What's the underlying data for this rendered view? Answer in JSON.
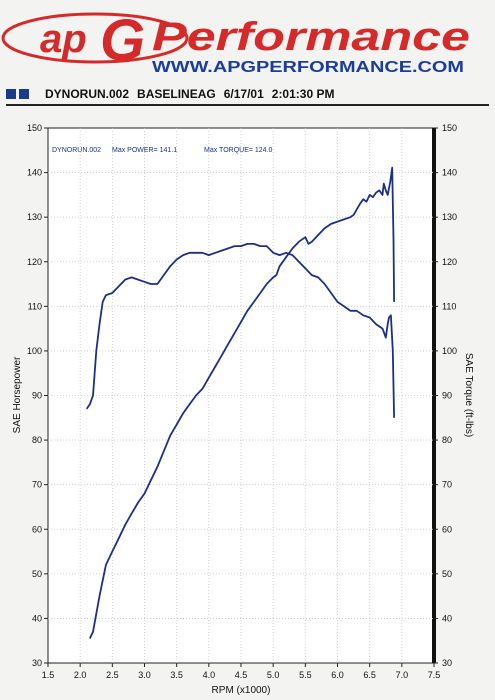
{
  "logo": {
    "mark": "ap",
    "brand": "Performance",
    "url": "WWW.APGPERFORMANCE.COM",
    "colors": {
      "red": "#d42a2a",
      "blue": "#1d3d9a"
    }
  },
  "header": {
    "file": "DYNORUN.002",
    "title": "BASELINEAG",
    "date": "6/17/01",
    "time": "2:01:30 PM"
  },
  "chart_data": {
    "type": "line",
    "title": "",
    "info": {
      "run": "DYNORUN.002",
      "max_power": "Max POWER= 141.1",
      "max_torque": "Max TORQUE= 124.0"
    },
    "xlabel": "RPM (x1000)",
    "ylabel_left": "SAE Horsepower",
    "ylabel_right": "SAE Torque (ft-lbs)",
    "xlim": [
      1.5,
      7.5
    ],
    "ylim": [
      30,
      150
    ],
    "x_ticks": [
      "1.5",
      "2.0",
      "2.5",
      "3.0",
      "3.5",
      "4.0",
      "4.5",
      "5.0",
      "5.5",
      "6.0",
      "6.5",
      "7.0",
      "7.5"
    ],
    "y_ticks": [
      "30",
      "40",
      "50",
      "60",
      "70",
      "80",
      "90",
      "100",
      "110",
      "120",
      "130",
      "140",
      "150"
    ],
    "grid": true,
    "line_color": "#1e2f86",
    "series": [
      {
        "role": "power",
        "points": [
          [
            2.15,
            35.5
          ],
          [
            2.2,
            37
          ],
          [
            2.3,
            45
          ],
          [
            2.4,
            52
          ],
          [
            2.5,
            55
          ],
          [
            2.6,
            58
          ],
          [
            2.7,
            61
          ],
          [
            2.8,
            63.5
          ],
          [
            2.9,
            66
          ],
          [
            3.0,
            68
          ],
          [
            3.1,
            71
          ],
          [
            3.2,
            74
          ],
          [
            3.3,
            77.5
          ],
          [
            3.4,
            81
          ],
          [
            3.5,
            83.5
          ],
          [
            3.6,
            86
          ],
          [
            3.7,
            88
          ],
          [
            3.8,
            90
          ],
          [
            3.9,
            91.5
          ],
          [
            4.0,
            94
          ],
          [
            4.1,
            96.5
          ],
          [
            4.2,
            99
          ],
          [
            4.3,
            101.5
          ],
          [
            4.4,
            104
          ],
          [
            4.5,
            106.5
          ],
          [
            4.6,
            109
          ],
          [
            4.7,
            111
          ],
          [
            4.8,
            113
          ],
          [
            4.9,
            115
          ],
          [
            5.0,
            116.5
          ],
          [
            5.05,
            117
          ],
          [
            5.1,
            119
          ],
          [
            5.2,
            121
          ],
          [
            5.3,
            123
          ],
          [
            5.4,
            124.5
          ],
          [
            5.5,
            125.5
          ],
          [
            5.55,
            124
          ],
          [
            5.6,
            124.5
          ],
          [
            5.7,
            126
          ],
          [
            5.8,
            127.5
          ],
          [
            5.9,
            128.5
          ],
          [
            6.0,
            129
          ],
          [
            6.1,
            129.5
          ],
          [
            6.2,
            130
          ],
          [
            6.25,
            130.5
          ],
          [
            6.35,
            133
          ],
          [
            6.4,
            134
          ],
          [
            6.45,
            133.5
          ],
          [
            6.5,
            135
          ],
          [
            6.55,
            134.5
          ],
          [
            6.6,
            135.5
          ],
          [
            6.65,
            136
          ],
          [
            6.7,
            135
          ],
          [
            6.72,
            137.5
          ],
          [
            6.75,
            136
          ],
          [
            6.78,
            135
          ],
          [
            6.82,
            138
          ],
          [
            6.85,
            141.1
          ],
          [
            6.87,
            125
          ],
          [
            6.88,
            111
          ]
        ]
      },
      {
        "role": "torque",
        "points": [
          [
            2.1,
            87
          ],
          [
            2.15,
            88
          ],
          [
            2.2,
            90
          ],
          [
            2.25,
            100
          ],
          [
            2.3,
            106
          ],
          [
            2.35,
            111
          ],
          [
            2.4,
            112.5
          ],
          [
            2.5,
            113
          ],
          [
            2.6,
            114.5
          ],
          [
            2.7,
            116
          ],
          [
            2.8,
            116.5
          ],
          [
            2.9,
            116
          ],
          [
            3.0,
            115.5
          ],
          [
            3.1,
            115
          ],
          [
            3.2,
            115
          ],
          [
            3.3,
            117
          ],
          [
            3.4,
            119
          ],
          [
            3.5,
            120.5
          ],
          [
            3.6,
            121.5
          ],
          [
            3.7,
            122
          ],
          [
            3.8,
            122
          ],
          [
            3.9,
            122
          ],
          [
            4.0,
            121.5
          ],
          [
            4.1,
            122
          ],
          [
            4.2,
            122.5
          ],
          [
            4.3,
            123
          ],
          [
            4.4,
            123.5
          ],
          [
            4.5,
            123.5
          ],
          [
            4.6,
            124
          ],
          [
            4.7,
            124
          ],
          [
            4.8,
            123.5
          ],
          [
            4.9,
            123.5
          ],
          [
            5.0,
            122
          ],
          [
            5.1,
            121.5
          ],
          [
            5.2,
            122
          ],
          [
            5.3,
            121.5
          ],
          [
            5.4,
            120
          ],
          [
            5.5,
            118.5
          ],
          [
            5.6,
            117
          ],
          [
            5.7,
            116.5
          ],
          [
            5.8,
            115
          ],
          [
            5.9,
            113
          ],
          [
            6.0,
            111
          ],
          [
            6.1,
            110
          ],
          [
            6.2,
            109
          ],
          [
            6.3,
            109
          ],
          [
            6.4,
            108
          ],
          [
            6.5,
            107.5
          ],
          [
            6.6,
            106
          ],
          [
            6.7,
            105
          ],
          [
            6.75,
            103
          ],
          [
            6.78,
            106
          ],
          [
            6.8,
            107.5
          ],
          [
            6.83,
            108
          ],
          [
            6.86,
            100
          ],
          [
            6.88,
            85
          ]
        ]
      }
    ]
  }
}
